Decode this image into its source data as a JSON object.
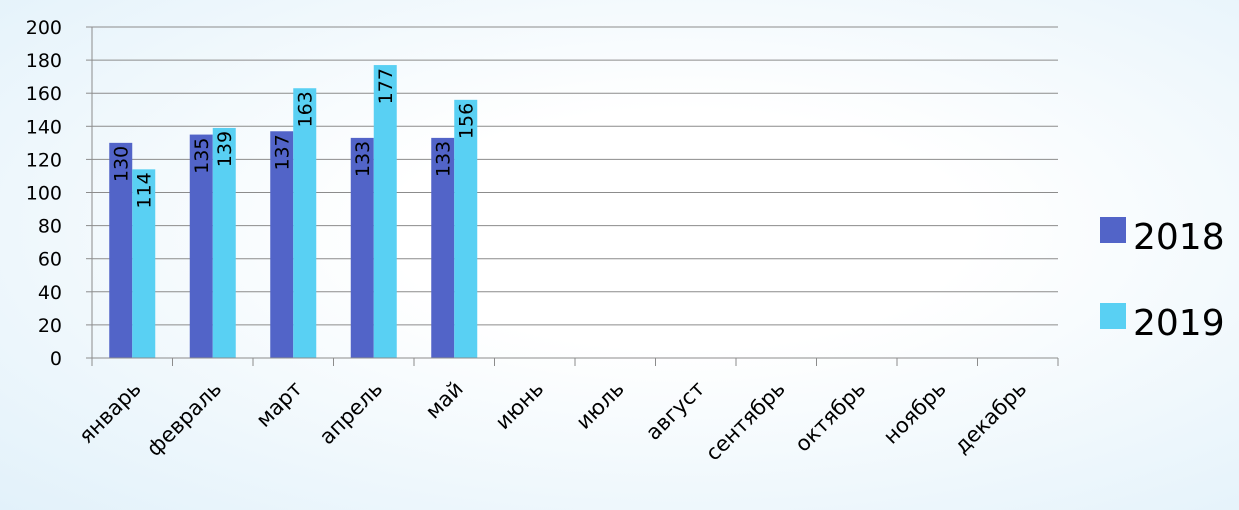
{
  "chart_data": {
    "type": "bar",
    "categories": [
      "январь",
      "февраль",
      "март",
      "апрель",
      "май",
      "июнь",
      "июль",
      "август",
      "сентябрь",
      "октябрь",
      "ноябрь",
      "декабрь"
    ],
    "series": [
      {
        "name": "2018",
        "color": "#5264c8",
        "values": [
          130,
          135,
          137,
          133,
          133,
          null,
          null,
          null,
          null,
          null,
          null,
          null
        ]
      },
      {
        "name": "2019",
        "color": "#59d0f3",
        "values": [
          114,
          139,
          163,
          177,
          156,
          null,
          null,
          null,
          null,
          null,
          null,
          null
        ]
      }
    ],
    "y_ticks": [
      "0",
      "20",
      "40",
      "60",
      "80",
      "100",
      "120",
      "140",
      "160",
      "180",
      "200"
    ],
    "ylim": [
      0,
      200
    ],
    "grid": true,
    "legend_position": "right",
    "data_labels": true
  }
}
